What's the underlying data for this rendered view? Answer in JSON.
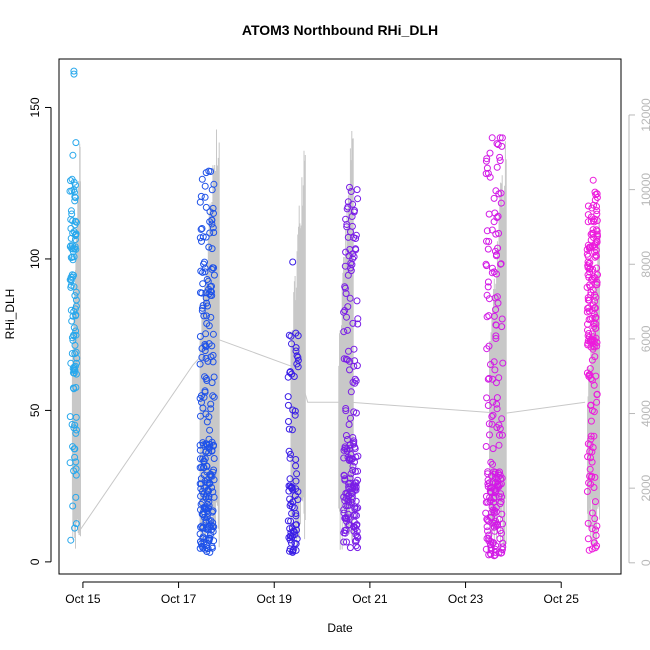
{
  "chart_data": {
    "type": "scatter",
    "title": "ATOM3 Northbound RHi_DLH",
    "xlabel": "Date",
    "ylabel": "RHi_DLH",
    "x_ticks": [
      "Oct 15",
      "Oct 17",
      "Oct 19",
      "Oct 21",
      "Oct 23",
      "Oct 25"
    ],
    "x_tick_days": [
      15,
      17,
      19,
      21,
      23,
      25
    ],
    "xlim": [
      14.5,
      26.25
    ],
    "ylim": [
      -4,
      166
    ],
    "y_ticks": [
      0,
      50,
      100,
      150
    ],
    "y2lim": [
      -300,
      13500
    ],
    "y2_ticks": [
      0,
      2000,
      4000,
      6000,
      8000,
      10000,
      12000
    ],
    "grid": false,
    "colors": {
      "oct15": "#29a8ec",
      "oct17": "#1f52e8",
      "oct19": "#3a1ee6",
      "oct20": "#7a1ee6",
      "oct23": "#d21be6",
      "oct25": "#ec1bdc",
      "altitude_line": "#c8c8c8"
    },
    "series": [
      {
        "color_key": "oct15",
        "x_center": 14.8,
        "x_width": 0.14,
        "count": 110,
        "ymin": 5,
        "ymax": 140,
        "dense_min": 60,
        "dense_max": 130,
        "extra": [
          162,
          161
        ]
      },
      {
        "color_key": "oct17",
        "x_center": 17.6,
        "x_width": 0.3,
        "count": 230,
        "ymin": 3,
        "ymax": 130,
        "dense_min": 3,
        "dense_max": 40,
        "extra": [
          124,
          129
        ]
      },
      {
        "color_key": "oct19",
        "x_center": 19.4,
        "x_width": 0.22,
        "count": 80,
        "ymin": 3,
        "ymax": 76,
        "dense_min": 3,
        "dense_max": 30,
        "extra": [
          99
        ]
      },
      {
        "color_key": "oct20",
        "x_center": 20.6,
        "x_width": 0.3,
        "count": 180,
        "ymin": 4,
        "ymax": 126,
        "dense_min": 4,
        "dense_max": 40,
        "extra": [
          114
        ]
      },
      {
        "color_key": "oct23",
        "x_center": 23.6,
        "x_width": 0.36,
        "count": 200,
        "ymin": 2,
        "ymax": 141,
        "dense_min": 2,
        "dense_max": 30,
        "extra": [
          140,
          120
        ]
      },
      {
        "color_key": "oct25",
        "x_center": 25.65,
        "x_width": 0.22,
        "count": 180,
        "ymin": 3,
        "ymax": 126,
        "dense_min": 70,
        "dense_max": 120,
        "extra": [
          126
        ]
      }
    ],
    "altitude_trace": {
      "path": [
        [
          14.9,
          800
        ],
        [
          17.3,
          5300
        ],
        [
          17.8,
          6000
        ],
        [
          19.5,
          5200
        ],
        [
          19.7,
          4300
        ],
        [
          20.5,
          4300
        ],
        [
          20.6,
          4300
        ],
        [
          23.8,
          4000
        ],
        [
          25.5,
          4300
        ]
      ],
      "flights": [
        {
          "x_start": 14.78,
          "x_end": 14.95,
          "peak": 11900
        },
        {
          "x_start": 17.45,
          "x_end": 17.85,
          "peak": 12900
        },
        {
          "x_start": 19.35,
          "x_end": 19.65,
          "peak": 12400
        },
        {
          "x_start": 20.35,
          "x_end": 20.65,
          "peak": 12300
        },
        {
          "x_start": 23.5,
          "x_end": 23.85,
          "peak": 12300
        },
        {
          "x_start": 25.55,
          "x_end": 25.8,
          "peak": 9600
        }
      ]
    }
  }
}
